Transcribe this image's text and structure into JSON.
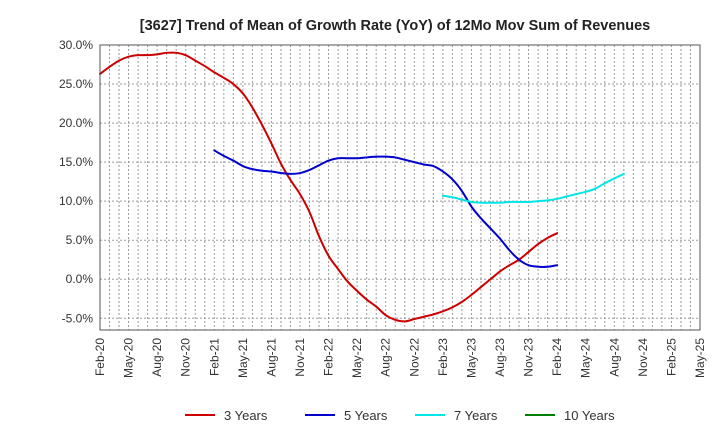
{
  "chart_data": {
    "type": "line",
    "title": "[3627]  Trend of Mean of Growth Rate (YoY) of 12Mo Mov Sum of Revenues",
    "xlabel": "",
    "ylabel": "",
    "y_unit": "%",
    "ylim": [
      -6.5,
      30
    ],
    "yticks": [
      -5,
      0,
      5,
      10,
      15,
      20,
      25,
      30
    ],
    "ytick_labels": [
      "-5.0%",
      "0.0%",
      "5.0%",
      "10.0%",
      "15.0%",
      "20.0%",
      "25.0%",
      "30.0%"
    ],
    "x_start": "Feb-20",
    "x_end": "May-25",
    "xtick_labels": [
      "Feb-20",
      "May-20",
      "Aug-20",
      "Nov-20",
      "Feb-21",
      "May-21",
      "Aug-21",
      "Nov-21",
      "Feb-22",
      "May-22",
      "Aug-22",
      "Nov-22",
      "Feb-23",
      "May-23",
      "Aug-23",
      "Nov-23",
      "Feb-24",
      "May-24",
      "Aug-24",
      "Nov-24",
      "Feb-25",
      "May-25"
    ],
    "grid": true,
    "legend_position": "bottom",
    "series": [
      {
        "name": "3 Years",
        "color": "#cc0000",
        "start_month_index": 0,
        "values": [
          26.3,
          27.2,
          28.0,
          28.5,
          28.7,
          28.7,
          28.8,
          29.0,
          29.0,
          28.7,
          28.0,
          27.3,
          26.5,
          25.8,
          25.0,
          23.8,
          22.0,
          19.8,
          17.4,
          14.8,
          12.7,
          10.9,
          8.6,
          5.5,
          3.0,
          1.3,
          -0.3,
          -1.5,
          -2.6,
          -3.5,
          -4.6,
          -5.2,
          -5.4,
          -5.1,
          -4.8,
          -4.5,
          -4.1,
          -3.6,
          -2.9,
          -2.0,
          -1.0,
          0.0,
          1.0,
          1.8,
          2.5,
          3.5,
          4.5,
          5.3,
          5.9
        ]
      },
      {
        "name": "5 Years",
        "color": "#0000cc",
        "start_month_index": 12,
        "values": [
          16.5,
          15.8,
          15.2,
          14.5,
          14.1,
          13.9,
          13.8,
          13.6,
          13.5,
          13.6,
          14.0,
          14.6,
          15.2,
          15.5,
          15.5,
          15.5,
          15.6,
          15.7,
          15.7,
          15.6,
          15.3,
          15.0,
          14.7,
          14.5,
          13.8,
          12.8,
          11.3,
          9.3,
          7.8,
          6.5,
          5.2,
          3.7,
          2.5,
          1.8,
          1.6,
          1.6,
          1.8
        ]
      },
      {
        "name": "7 Years",
        "color": "#00e5e5",
        "start_month_index": 36,
        "values": [
          10.7,
          10.5,
          10.2,
          9.9,
          9.8,
          9.8,
          9.8,
          9.9,
          9.9,
          9.9,
          10.0,
          10.1,
          10.3,
          10.6,
          10.9,
          11.2,
          11.6,
          12.3,
          12.9,
          13.5
        ]
      },
      {
        "name": "10 Years",
        "color": "#008000",
        "start_month_index": null,
        "values": []
      }
    ]
  }
}
